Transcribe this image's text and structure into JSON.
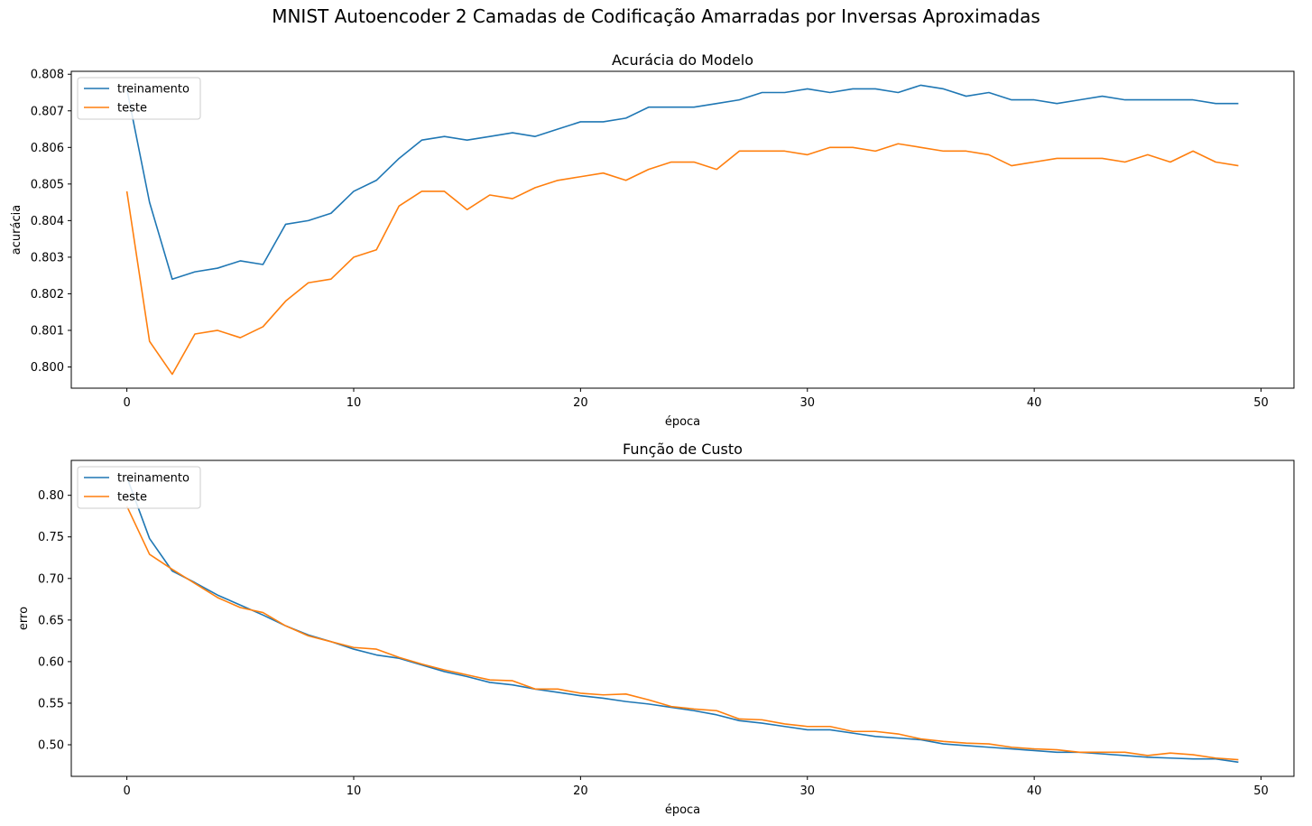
{
  "figure_title": "MNIST Autoencoder 2 Camadas de Codificação Amarradas por Inversas Aproximadas",
  "colors": {
    "train": "#1f77b4",
    "test": "#ff7f0e"
  },
  "chart_data": [
    {
      "type": "line",
      "title": "Acurácia do Modelo",
      "xlabel": "época",
      "ylabel": "acurácia",
      "xlim": [
        -2.45,
        51.45
      ],
      "ylim": [
        0.79942,
        0.80808
      ],
      "xticks": [
        0,
        10,
        20,
        30,
        40,
        50
      ],
      "yticks": [
        0.8,
        0.801,
        0.802,
        0.803,
        0.804,
        0.805,
        0.806,
        0.807,
        0.808
      ],
      "ytick_labels": [
        "0.800",
        "0.801",
        "0.802",
        "0.803",
        "0.804",
        "0.805",
        "0.806",
        "0.807",
        "0.808"
      ],
      "legend": "upper left",
      "series": [
        {
          "name": "treinamento",
          "color": "#1f77b4",
          "values": [
            0.8076,
            0.8045,
            0.8024,
            0.8026,
            0.8027,
            0.8029,
            0.8028,
            0.8039,
            0.804,
            0.8042,
            0.8048,
            0.8051,
            0.8057,
            0.8062,
            0.8063,
            0.8062,
            0.8063,
            0.8064,
            0.8063,
            0.8065,
            0.8067,
            0.8067,
            0.8068,
            0.8071,
            0.8071,
            0.8071,
            0.8072,
            0.8073,
            0.8075,
            0.8075,
            0.8076,
            0.8075,
            0.8076,
            0.8076,
            0.8075,
            0.8077,
            0.8076,
            0.8074,
            0.8075,
            0.8073,
            0.8073,
            0.8072,
            0.8073,
            0.8074,
            0.8073,
            0.8073,
            0.8073,
            0.8073,
            0.8072,
            0.8072
          ]
        },
        {
          "name": "teste",
          "color": "#ff7f0e",
          "values": [
            0.8048,
            0.8007,
            0.7998,
            0.8009,
            0.801,
            0.8008,
            0.8011,
            0.8018,
            0.8023,
            0.8024,
            0.803,
            0.8032,
            0.8044,
            0.8048,
            0.8048,
            0.8043,
            0.8047,
            0.8046,
            0.8049,
            0.8051,
            0.8052,
            0.8053,
            0.8051,
            0.8054,
            0.8056,
            0.8056,
            0.8054,
            0.8059,
            0.8059,
            0.8059,
            0.8058,
            0.806,
            0.806,
            0.8059,
            0.8061,
            0.806,
            0.8059,
            0.8059,
            0.8058,
            0.8055,
            0.8056,
            0.8057,
            0.8057,
            0.8057,
            0.8056,
            0.8058,
            0.8056,
            0.8059,
            0.8056,
            0.8055
          ]
        }
      ]
    },
    {
      "type": "line",
      "title": "Função de Custo",
      "xlabel": "época",
      "ylabel": "erro",
      "xlim": [
        -2.45,
        51.45
      ],
      "ylim": [
        0.462,
        0.842
      ],
      "xticks": [
        0,
        10,
        20,
        30,
        40,
        50
      ],
      "yticks": [
        0.5,
        0.55,
        0.6,
        0.65,
        0.7,
        0.75,
        0.8
      ],
      "ytick_labels": [
        "0.50",
        "0.55",
        "0.60",
        "0.65",
        "0.70",
        "0.75",
        "0.80"
      ],
      "legend": "upper left",
      "series": [
        {
          "name": "treinamento",
          "color": "#1f77b4",
          "values": [
            0.822,
            0.748,
            0.709,
            0.695,
            0.68,
            0.668,
            0.656,
            0.643,
            0.632,
            0.624,
            0.615,
            0.608,
            0.604,
            0.596,
            0.588,
            0.582,
            0.575,
            0.572,
            0.567,
            0.563,
            0.559,
            0.556,
            0.552,
            0.549,
            0.545,
            0.541,
            0.536,
            0.529,
            0.526,
            0.522,
            0.518,
            0.518,
            0.514,
            0.51,
            0.508,
            0.506,
            0.501,
            0.499,
            0.497,
            0.495,
            0.493,
            0.491,
            0.491,
            0.489,
            0.487,
            0.485,
            0.484,
            0.483,
            0.483,
            0.479
          ]
        },
        {
          "name": "teste",
          "color": "#ff7f0e",
          "values": [
            0.787,
            0.729,
            0.711,
            0.694,
            0.677,
            0.665,
            0.659,
            0.643,
            0.631,
            0.624,
            0.617,
            0.615,
            0.605,
            0.597,
            0.59,
            0.584,
            0.578,
            0.577,
            0.567,
            0.567,
            0.562,
            0.56,
            0.561,
            0.554,
            0.546,
            0.543,
            0.541,
            0.531,
            0.53,
            0.525,
            0.522,
            0.522,
            0.516,
            0.516,
            0.513,
            0.507,
            0.504,
            0.502,
            0.501,
            0.497,
            0.495,
            0.494,
            0.491,
            0.491,
            0.491,
            0.487,
            0.49,
            0.488,
            0.484,
            0.482
          ]
        }
      ]
    }
  ]
}
